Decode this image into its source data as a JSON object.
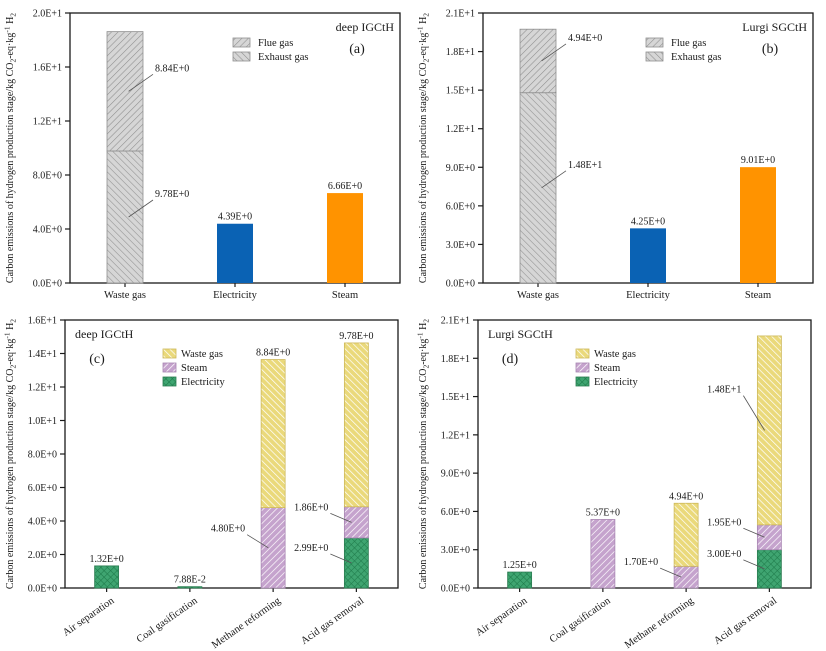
{
  "figure_name": "Carbon emissions of hydrogen production stage",
  "colors": {
    "axis": "#1a1a1a",
    "annotation_line": "#555555",
    "gray_fill": "#d6d6d6",
    "gray_hatch": "#8f8f8f",
    "electricity_blue": "#0a62b4",
    "steam_orange": "#ff9300",
    "waste_yellow": "#ead97b",
    "steam_purple": "#c5a3cd",
    "electricity_green": "#3fa571"
  },
  "styles": {
    "flue": {
      "fill": "#d6d6d6",
      "hatch": "/",
      "line": "#8f8f8f",
      "edge": "#8f8f8f",
      "lw": 1.1
    },
    "exhaust": {
      "fill": "#d6d6d6",
      "hatch": "\\",
      "line": "#8f8f8f",
      "edge": "#8f8f8f",
      "lw": 1.1
    },
    "electricity-solid": {
      "fill": "#0a62b4"
    },
    "steam-solid": {
      "fill": "#ff9300"
    },
    "waste-hatch": {
      "fill": "#ead97b",
      "hatch": "\\",
      "line": "#ffffff",
      "edge": "#cdb85a",
      "lw": 1.4
    },
    "steam-hatch": {
      "fill": "#c5a3cd",
      "hatch": "/",
      "line": "#ffffff",
      "edge": "#a886b2",
      "lw": 1.4
    },
    "electricity-hatch": {
      "fill": "#3fa571",
      "hatch": "x",
      "line": "#1e7a4a",
      "edge": "#2c7d52",
      "lw": 1.1
    }
  },
  "ylabel": "Carbon emissions of hydrogen production stage/kg CO2-eq·kg-1 H2",
  "ylabel_parts": [
    {
      "t": "Carbon emissions of hydrogen production stage/kg CO"
    },
    {
      "t": "2",
      "s": "sub"
    },
    {
      "t": "-eq·kg",
      "s": ""
    },
    {
      "t": "-1",
      "s": "sup"
    },
    {
      "t": " H",
      "s": ""
    },
    {
      "t": "2",
      "s": "sub"
    }
  ],
  "chart_data": [
    {
      "id": "a",
      "type": "bar",
      "stacked": true,
      "title": "deep IGCtH",
      "panel_label": "(a)",
      "ylim": [
        0,
        20
      ],
      "ytick_values": [
        0,
        4,
        8,
        12,
        16,
        20
      ],
      "ytick_labels": [
        "0.0E+0",
        "4.0E+0",
        "8.0E+0",
        "1.2E+1",
        "1.6E+1",
        "2.0E+1"
      ],
      "categories": [
        "Waste gas",
        "Electricity",
        "Steam"
      ],
      "legend": [
        {
          "label": "Flue gas",
          "style": "flue"
        },
        {
          "label": "Exhaust gas",
          "style": "exhaust"
        }
      ],
      "bars": [
        {
          "category": "Waste gas",
          "segments": [
            {
              "style": "exhaust",
              "value": 9.78,
              "label": "9.78E+0",
              "label_mode": "leader-right"
            },
            {
              "style": "flue",
              "value": 8.84,
              "label": "8.84E+0",
              "label_mode": "leader-right"
            }
          ]
        },
        {
          "category": "Electricity",
          "segments": [
            {
              "style": "electricity-solid",
              "value": 4.39,
              "label": "4.39E+0",
              "label_mode": "above"
            }
          ]
        },
        {
          "category": "Steam",
          "segments": [
            {
              "style": "steam-solid",
              "value": 6.66,
              "label": "6.66E+0",
              "label_mode": "above"
            }
          ]
        }
      ]
    },
    {
      "id": "b",
      "type": "bar",
      "stacked": true,
      "title": "Lurgi SGCtH",
      "panel_label": "(b)",
      "ylim": [
        0,
        21
      ],
      "ytick_values": [
        0,
        3,
        6,
        9,
        12,
        15,
        18,
        21
      ],
      "ytick_labels": [
        "0.0E+0",
        "3.0E+0",
        "6.0E+0",
        "9.0E+0",
        "1.2E+1",
        "1.5E+1",
        "1.8E+1",
        "2.1E+1"
      ],
      "categories": [
        "Waste gas",
        "Electricity",
        "Steam"
      ],
      "legend": [
        {
          "label": "Flue gas",
          "style": "flue"
        },
        {
          "label": "Exhaust gas",
          "style": "exhaust"
        }
      ],
      "bars": [
        {
          "category": "Waste gas",
          "segments": [
            {
              "style": "exhaust",
              "value": 14.8,
              "label": "1.48E+1",
              "label_mode": "leader-right"
            },
            {
              "style": "flue",
              "value": 4.94,
              "label": "4.94E+0",
              "label_mode": "leader-right"
            }
          ]
        },
        {
          "category": "Electricity",
          "segments": [
            {
              "style": "electricity-solid",
              "value": 4.25,
              "label": "4.25E+0",
              "label_mode": "above"
            }
          ]
        },
        {
          "category": "Steam",
          "segments": [
            {
              "style": "steam-solid",
              "value": 9.01,
              "label": "9.01E+0",
              "label_mode": "above"
            }
          ]
        }
      ]
    },
    {
      "id": "c",
      "type": "bar",
      "stacked": true,
      "title": "deep IGCtH",
      "panel_label": "(c)",
      "ylim": [
        0,
        16
      ],
      "ytick_values": [
        0,
        2,
        4,
        6,
        8,
        10,
        12,
        14,
        16
      ],
      "ytick_labels": [
        "0.0E+0",
        "2.0E+0",
        "4.0E+0",
        "6.0E+0",
        "8.0E+0",
        "1.0E+1",
        "1.2E+1",
        "1.4E+1",
        "1.6E+1"
      ],
      "categories": [
        "Air separation",
        "Coal gasification",
        "Methane reforming",
        "Acid gas removal"
      ],
      "legend": [
        {
          "label": "Waste gas",
          "style": "waste-hatch"
        },
        {
          "label": "Steam",
          "style": "steam-hatch"
        },
        {
          "label": "Electricity",
          "style": "electricity-hatch"
        }
      ],
      "bars": [
        {
          "category": "Air separation",
          "segments": [
            {
              "style": "electricity-hatch",
              "value": 1.32,
              "label": "1.32E+0",
              "label_mode": "above"
            }
          ]
        },
        {
          "category": "Coal gasification",
          "segments": [
            {
              "style": "electricity-hatch",
              "value": 0.0788,
              "label": "7.88E-2",
              "label_mode": "above"
            }
          ]
        },
        {
          "category": "Methane reforming",
          "segments": [
            {
              "style": "steam-hatch",
              "value": 4.8,
              "label": "4.80E+0",
              "label_mode": "leader-left"
            },
            {
              "style": "waste-hatch",
              "value": 8.84,
              "label": "8.84E+0",
              "label_mode": "above"
            }
          ]
        },
        {
          "category": "Acid gas removal",
          "segments": [
            {
              "style": "electricity-hatch",
              "value": 2.99,
              "label": "2.99E+0",
              "label_mode": "leader-left"
            },
            {
              "style": "steam-hatch",
              "value": 1.86,
              "label": "1.86E+0",
              "label_mode": "leader-left"
            },
            {
              "style": "waste-hatch",
              "value": 9.78,
              "label": "9.78E+0",
              "label_mode": "above"
            }
          ]
        }
      ]
    },
    {
      "id": "d",
      "type": "bar",
      "stacked": true,
      "title": "Lurgi SGCtH",
      "panel_label": "(d)",
      "ylim": [
        0,
        21
      ],
      "ytick_values": [
        0,
        3,
        6,
        9,
        12,
        15,
        18,
        21
      ],
      "ytick_labels": [
        "0.0E+0",
        "3.0E+0",
        "6.0E+0",
        "9.0E+0",
        "1.2E+1",
        "1.5E+1",
        "1.8E+1",
        "2.1E+1"
      ],
      "categories": [
        "Air separation",
        "Coal gasification",
        "Methane reforming",
        "Acid gas removal"
      ],
      "legend": [
        {
          "label": "Waste gas",
          "style": "waste-hatch"
        },
        {
          "label": "Steam",
          "style": "steam-hatch"
        },
        {
          "label": "Electricity",
          "style": "electricity-hatch"
        }
      ],
      "bars": [
        {
          "category": "Air separation",
          "segments": [
            {
              "style": "electricity-hatch",
              "value": 1.25,
              "label": "1.25E+0",
              "label_mode": "above"
            }
          ]
        },
        {
          "category": "Coal gasification",
          "segments": [
            {
              "style": "steam-hatch",
              "value": 5.37,
              "label": "5.37E+0",
              "label_mode": "above"
            }
          ]
        },
        {
          "category": "Methane reforming",
          "segments": [
            {
              "style": "steam-hatch",
              "value": 1.7,
              "label": "1.70E+0",
              "label_mode": "leader-left"
            },
            {
              "style": "waste-hatch",
              "value": 4.94,
              "label": "4.94E+0",
              "label_mode": "above"
            }
          ]
        },
        {
          "category": "Acid gas removal",
          "segments": [
            {
              "style": "electricity-hatch",
              "value": 3.0,
              "label": "3.00E+0",
              "label_mode": "leader-left"
            },
            {
              "style": "steam-hatch",
              "value": 1.95,
              "label": "1.95E+0",
              "label_mode": "leader-left"
            },
            {
              "style": "waste-hatch",
              "value": 14.8,
              "label": "1.48E+1",
              "label_mode": "leader-left"
            }
          ]
        }
      ]
    }
  ]
}
